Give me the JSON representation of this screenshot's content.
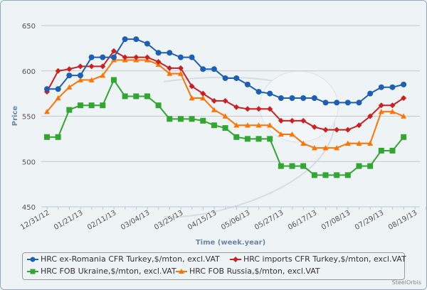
{
  "chart_data": {
    "type": "line",
    "title": "",
    "xlabel": "Time (week.year)",
    "ylabel": "Price",
    "ylim": [
      450,
      650
    ],
    "yticks": [
      "450",
      "500",
      "550",
      "600",
      "650"
    ],
    "grid": true,
    "legend_placement": "bottom",
    "x_tick_labels": [
      "12/31/12",
      "01/21/13",
      "02/11/13",
      "03/04/13",
      "03/25/13",
      "04/15/13",
      "05/06/13",
      "05/27/13",
      "06/17/13",
      "07/08/13",
      "07/29/13",
      "08/19/13"
    ],
    "x_note": "weekly points starting 12/31/12, 33 weeks",
    "series": [
      {
        "name": "HRC ex-Romania CFR Turkey,$/mton, excl.VAT",
        "color": "#1c5fb5",
        "marker": "circle",
        "values": [
          580,
          580,
          595,
          595,
          615,
          615,
          615,
          635,
          635,
          630,
          620,
          620,
          615,
          615,
          602,
          602,
          592,
          592,
          585,
          577,
          575,
          570,
          570,
          570,
          570,
          565,
          565,
          565,
          565,
          575,
          582,
          582,
          585
        ]
      },
      {
        "name": "HRC imports CFR Turkey,$/mton, excl.VAT",
        "color": "#cc1f1f",
        "marker": "diamond",
        "values": [
          577,
          600,
          602,
          605,
          605,
          605,
          622,
          615,
          615,
          615,
          610,
          603,
          603,
          583,
          575,
          567,
          567,
          560,
          558,
          558,
          558,
          545,
          545,
          545,
          538,
          535,
          535,
          535,
          540,
          550,
          562,
          562,
          570
        ]
      },
      {
        "name": "HRC FOB Ukraine,$/mton, excl.VAT",
        "color": "#33a532",
        "marker": "square",
        "values": [
          527,
          527,
          557,
          562,
          562,
          562,
          590,
          572,
          572,
          572,
          562,
          547,
          547,
          547,
          545,
          540,
          537,
          527,
          525,
          525,
          525,
          495,
          495,
          495,
          485,
          485,
          485,
          485,
          495,
          495,
          512,
          512,
          527
        ]
      },
      {
        "name": "HRC FOB Russia,$/mton, excl.VAT",
        "color": "#ff7300",
        "marker": "triangle",
        "values": [
          555,
          570,
          582,
          590,
          590,
          595,
          612,
          612,
          612,
          612,
          607,
          597,
          597,
          570,
          570,
          557,
          550,
          540,
          540,
          540,
          540,
          530,
          530,
          520,
          515,
          515,
          515,
          520,
          520,
          520,
          555,
          555,
          550
        ]
      }
    ]
  },
  "credit": "SteelOrbis"
}
